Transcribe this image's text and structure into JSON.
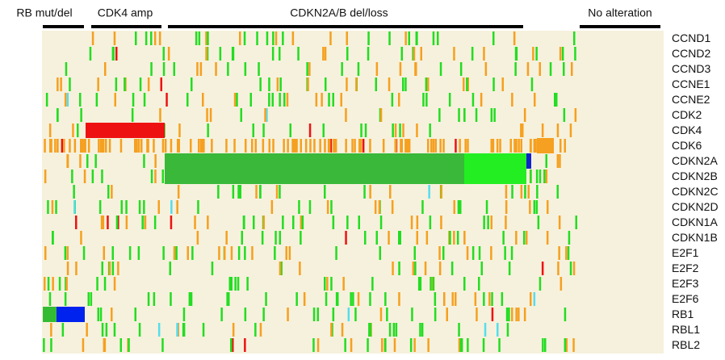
{
  "groups": [
    "RB mut/del",
    "CDK4 amp",
    "CDKN2A/B del/loss",
    "No alteration"
  ],
  "genes": [
    "CCND1",
    "CCND2",
    "CCND3",
    "CCNE1",
    "CCNE2",
    "CDK2",
    "CDK4",
    "CDK6",
    "CDKN2A",
    "CDKN2B",
    "CDKN2C",
    "CDKN2D",
    "CDKN1A",
    "CDKN1B",
    "E2F1",
    "E2F2",
    "E2F3",
    "E2F6",
    "RB1",
    "RBL1",
    "RBL2"
  ]
}
